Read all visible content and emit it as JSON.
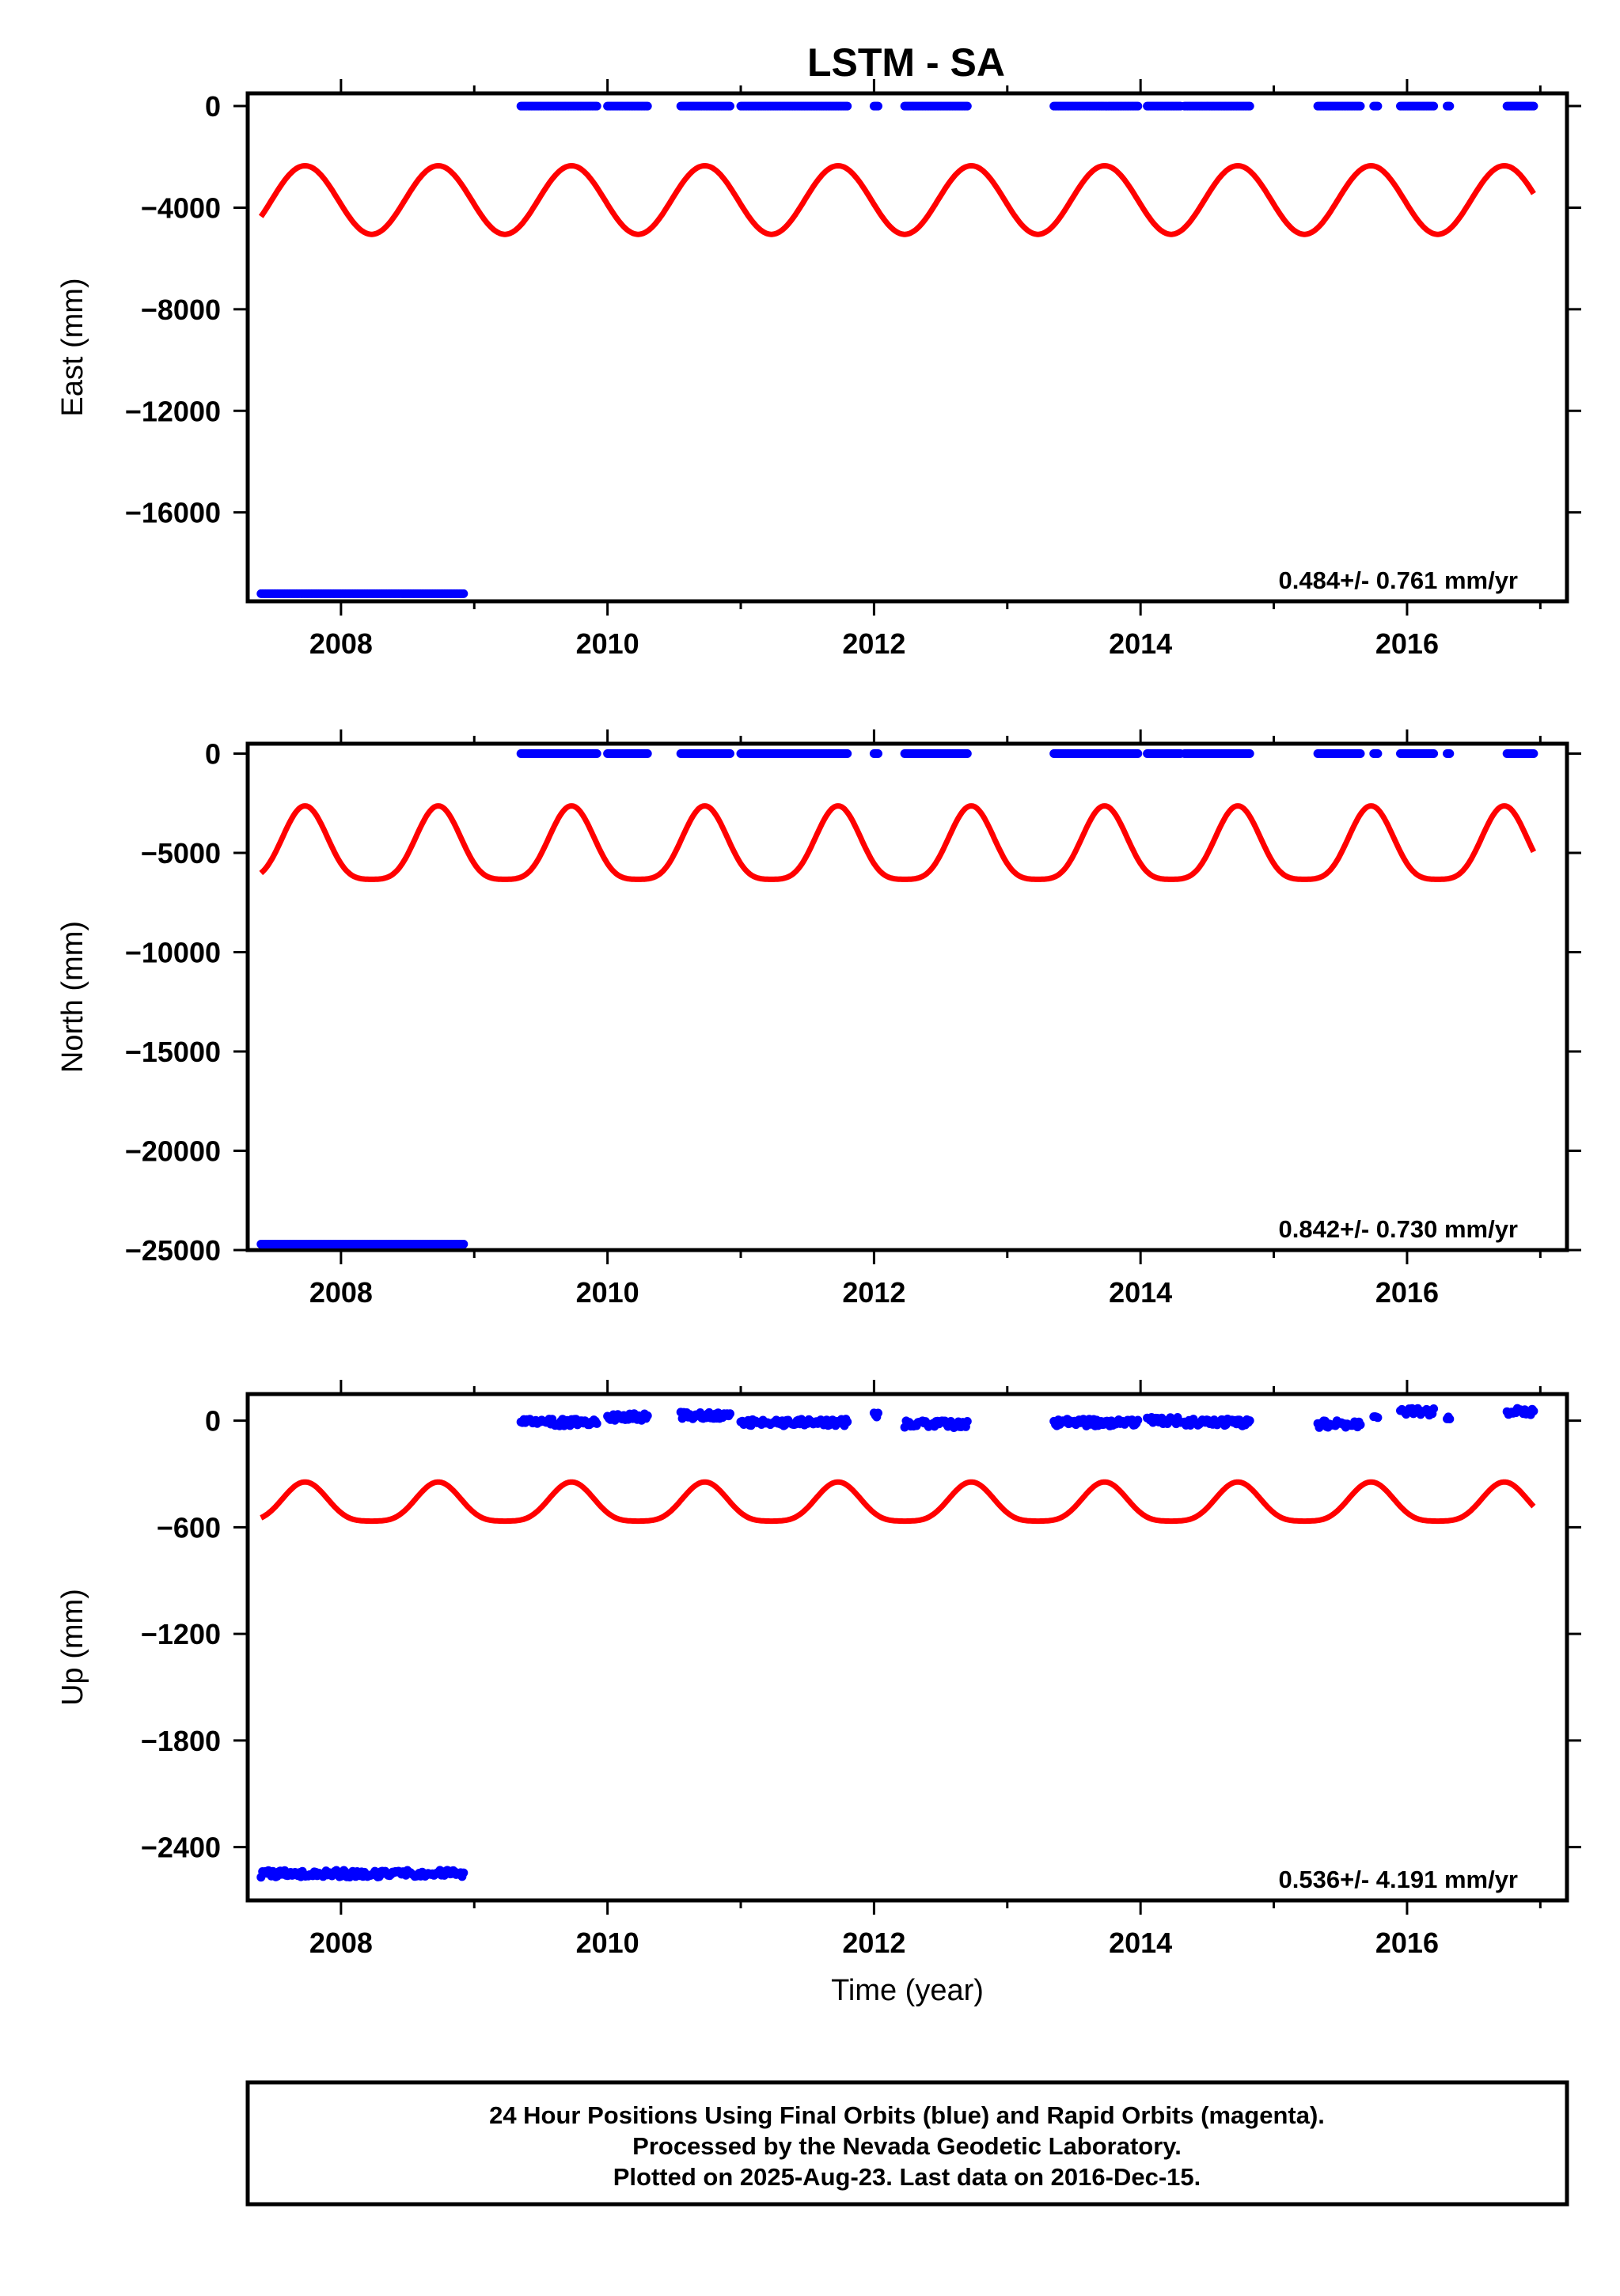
{
  "title": "LSTM - SA",
  "footer": {
    "lines": [
      "24 Hour Positions Using Final Orbits (blue) and Rapid Orbits (magenta).",
      "Processed by the Nevada Geodetic Laboratory.",
      "Plotted on 2025-Aug-23. Last data on 2016-Dec-15."
    ]
  },
  "colors": {
    "final_orbits": "#0000ff",
    "model_fit": "#ff0000",
    "frame": "#000000"
  },
  "chart_data": [
    {
      "type": "scatter",
      "name": "east",
      "ylabel": "East (mm)",
      "xlabel": "",
      "xlim": [
        2007.3,
        2017.2
      ],
      "ylim": [
        -19500,
        500
      ],
      "xticks": [
        2008,
        2010,
        2012,
        2014,
        2016
      ],
      "yticks": [
        0,
        -4000,
        -8000,
        -12000,
        -16000
      ],
      "grid": false,
      "rate_text": "0.484+/- 0.761 mm/yr",
      "fit_curve": {
        "mean": -3700,
        "amp1": 1350,
        "amp2": 0,
        "phase1": 0.33,
        "x_start": 2007.4,
        "x_end": 2016.95
      },
      "segments": [
        {
          "x": [
            2007.4,
            2008.92
          ],
          "y": -19200,
          "noise": 0
        },
        {
          "x": [
            2009.35,
            2009.92
          ],
          "y": 0,
          "noise": 0
        },
        {
          "x": [
            2010.0,
            2010.3
          ],
          "y": 0,
          "noise": 0
        },
        {
          "x": [
            2010.55,
            2010.92
          ],
          "y": 0,
          "noise": 0
        },
        {
          "x": [
            2011.0,
            2011.8
          ],
          "y": 0,
          "noise": 0
        },
        {
          "x": [
            2012.0,
            2012.03
          ],
          "y": 0,
          "noise": 0
        },
        {
          "x": [
            2012.23,
            2012.7
          ],
          "y": 0,
          "noise": 0
        },
        {
          "x": [
            2013.35,
            2013.98
          ],
          "y": 0,
          "noise": 0
        },
        {
          "x": [
            2014.05,
            2014.3
          ],
          "y": 0,
          "noise": 0
        },
        {
          "x": [
            2014.33,
            2014.82
          ],
          "y": 0,
          "noise": 0
        },
        {
          "x": [
            2015.33,
            2015.65
          ],
          "y": 0,
          "noise": 0
        },
        {
          "x": [
            2015.75,
            2015.78
          ],
          "y": 0,
          "noise": 0
        },
        {
          "x": [
            2015.95,
            2016.2
          ],
          "y": 0,
          "noise": 0
        },
        {
          "x": [
            2016.3,
            2016.32
          ],
          "y": 0,
          "noise": 0
        },
        {
          "x": [
            2016.75,
            2016.95
          ],
          "y": 0,
          "noise": 0
        }
      ]
    },
    {
      "type": "scatter",
      "name": "north",
      "ylabel": "North (mm)",
      "xlabel": "",
      "xlim": [
        2007.3,
        2017.2
      ],
      "ylim": [
        -25000,
        500
      ],
      "xticks": [
        2008,
        2010,
        2012,
        2014,
        2016
      ],
      "yticks": [
        0,
        -5000,
        -10000,
        -15000,
        -20000,
        -25000
      ],
      "grid": false,
      "rate_text": "0.842+/- 0.730 mm/yr",
      "fit_curve": {
        "mean": -4900,
        "amp1": 1850,
        "amp2": 420,
        "phase1": 0.33,
        "x_start": 2007.4,
        "x_end": 2016.95
      },
      "segments": [
        {
          "x": [
            2007.4,
            2008.92
          ],
          "y": -24700,
          "noise": 0
        },
        {
          "x": [
            2009.35,
            2009.92
          ],
          "y": 0,
          "noise": 0
        },
        {
          "x": [
            2010.0,
            2010.3
          ],
          "y": 0,
          "noise": 0
        },
        {
          "x": [
            2010.55,
            2010.92
          ],
          "y": 0,
          "noise": 0
        },
        {
          "x": [
            2011.0,
            2011.8
          ],
          "y": 0,
          "noise": 0
        },
        {
          "x": [
            2012.0,
            2012.03
          ],
          "y": 0,
          "noise": 0
        },
        {
          "x": [
            2012.23,
            2012.7
          ],
          "y": 0,
          "noise": 0
        },
        {
          "x": [
            2013.35,
            2013.98
          ],
          "y": 0,
          "noise": 0
        },
        {
          "x": [
            2014.05,
            2014.3
          ],
          "y": 0,
          "noise": 0
        },
        {
          "x": [
            2014.33,
            2014.82
          ],
          "y": 0,
          "noise": 0
        },
        {
          "x": [
            2015.33,
            2015.65
          ],
          "y": 0,
          "noise": 0
        },
        {
          "x": [
            2015.75,
            2015.78
          ],
          "y": 0,
          "noise": 0
        },
        {
          "x": [
            2015.95,
            2016.2
          ],
          "y": 0,
          "noise": 0
        },
        {
          "x": [
            2016.3,
            2016.32
          ],
          "y": 0,
          "noise": 0
        },
        {
          "x": [
            2016.75,
            2016.95
          ],
          "y": 0,
          "noise": 0
        }
      ]
    },
    {
      "type": "scatter",
      "name": "up",
      "ylabel": "Up (mm)",
      "xlabel": "Time (year)",
      "xlim": [
        2007.3,
        2017.2
      ],
      "ylim": [
        -2700,
        150
      ],
      "xticks": [
        2008,
        2010,
        2012,
        2014,
        2016
      ],
      "yticks": [
        0,
        -600,
        -1200,
        -1800,
        -2400
      ],
      "grid": false,
      "rate_text": "0.536+/- 4.191 mm/yr",
      "fit_curve": {
        "mean": -480,
        "amp1": 110,
        "amp2": 25,
        "phase1": 0.33,
        "x_start": 2007.4,
        "x_end": 2016.95
      },
      "segments": [
        {
          "x": [
            2007.4,
            2008.92
          ],
          "y": -2550,
          "noise": 20
        },
        {
          "x": [
            2009.35,
            2009.92
          ],
          "y": -10,
          "noise": 20
        },
        {
          "x": [
            2010.0,
            2010.3
          ],
          "y": 20,
          "noise": 20
        },
        {
          "x": [
            2010.55,
            2010.92
          ],
          "y": 30,
          "noise": 20
        },
        {
          "x": [
            2011.0,
            2011.8
          ],
          "y": -10,
          "noise": 20
        },
        {
          "x": [
            2012.0,
            2012.03
          ],
          "y": 30,
          "noise": 20
        },
        {
          "x": [
            2012.23,
            2012.7
          ],
          "y": -20,
          "noise": 20
        },
        {
          "x": [
            2013.35,
            2013.98
          ],
          "y": -10,
          "noise": 20
        },
        {
          "x": [
            2014.05,
            2014.3
          ],
          "y": 0,
          "noise": 20
        },
        {
          "x": [
            2014.33,
            2014.82
          ],
          "y": -10,
          "noise": 20
        },
        {
          "x": [
            2015.33,
            2015.65
          ],
          "y": -20,
          "noise": 20
        },
        {
          "x": [
            2015.75,
            2015.78
          ],
          "y": 30,
          "noise": 20
        },
        {
          "x": [
            2015.95,
            2016.2
          ],
          "y": 50,
          "noise": 20
        },
        {
          "x": [
            2016.3,
            2016.32
          ],
          "y": 20,
          "noise": 20
        },
        {
          "x": [
            2016.75,
            2016.95
          ],
          "y": 50,
          "noise": 20
        }
      ]
    }
  ]
}
